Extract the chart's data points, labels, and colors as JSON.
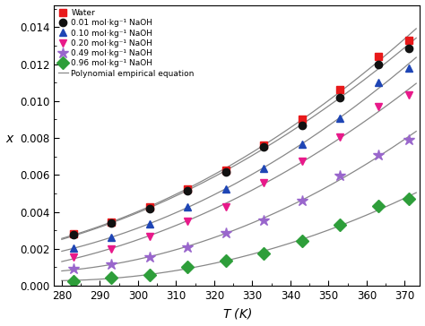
{
  "title": "",
  "xlabel": "$T$ (K)",
  "ylabel": "$x$",
  "xlim": [
    278,
    374
  ],
  "ylim": [
    0.0,
    0.0152
  ],
  "xticks": [
    280,
    290,
    300,
    310,
    320,
    330,
    340,
    350,
    360,
    370
  ],
  "yticks": [
    0.0,
    0.002,
    0.004,
    0.006,
    0.008,
    0.01,
    0.012,
    0.014
  ],
  "series": [
    {
      "label": "Water",
      "color": "#e8191a",
      "marker": "s",
      "T": [
        283,
        293,
        303,
        313,
        323,
        333,
        343,
        353,
        363,
        371
      ],
      "x": [
        0.0028,
        0.00345,
        0.00425,
        0.00525,
        0.00625,
        0.0076,
        0.009,
        0.0106,
        0.0124,
        0.0133
      ]
    },
    {
      "label": "0.01 mol·kg⁻¹ NaOH",
      "color": "#111111",
      "marker": "o",
      "T": [
        283,
        293,
        303,
        313,
        323,
        333,
        343,
        353,
        363,
        371
      ],
      "x": [
        0.00275,
        0.0034,
        0.00415,
        0.00515,
        0.00615,
        0.0075,
        0.0087,
        0.0102,
        0.012,
        0.01285
      ]
    },
    {
      "label": "0.10 mol·kg⁻¹ NaOH",
      "color": "#1e45b5",
      "marker": "^",
      "T": [
        283,
        293,
        303,
        313,
        323,
        333,
        343,
        353,
        363,
        371
      ],
      "x": [
        0.00205,
        0.0026,
        0.00335,
        0.00425,
        0.00525,
        0.00635,
        0.00765,
        0.00905,
        0.011,
        0.0118
      ]
    },
    {
      "label": "0.20 mol·kg⁻¹ NaOH",
      "color": "#e8198a",
      "marker": "v",
      "T": [
        283,
        293,
        303,
        313,
        323,
        333,
        343,
        353,
        363,
        371
      ],
      "x": [
        0.00155,
        0.002,
        0.00265,
        0.0035,
        0.00425,
        0.0056,
        0.00675,
        0.00805,
        0.0097,
        0.01035
      ]
    },
    {
      "label": "0.49 mol·kg⁻¹ NaOH",
      "color": "#9966cc",
      "marker": "*",
      "T": [
        283,
        293,
        303,
        313,
        323,
        333,
        343,
        353,
        363,
        371
      ],
      "x": [
        0.0009,
        0.00115,
        0.00155,
        0.0021,
        0.00285,
        0.00355,
        0.0046,
        0.00595,
        0.0071,
        0.0079
      ]
    },
    {
      "label": "0.96 mol·kg⁻¹ NaOH",
      "color": "#2e9e3a",
      "marker": "D",
      "T": [
        283,
        293,
        303,
        313,
        323,
        333,
        343,
        353,
        363,
        371
      ],
      "x": [
        0.00025,
        0.00045,
        0.0006,
        0.001,
        0.00135,
        0.00175,
        0.00245,
        0.0033,
        0.0043,
        0.0047
      ]
    }
  ],
  "poly_line_color": "#888888",
  "poly_degree": 2,
  "legend_poly_label": "Polynomial empirical equation",
  "marker_size": 6,
  "star_marker_size": 9,
  "diamond_marker_size": 7
}
